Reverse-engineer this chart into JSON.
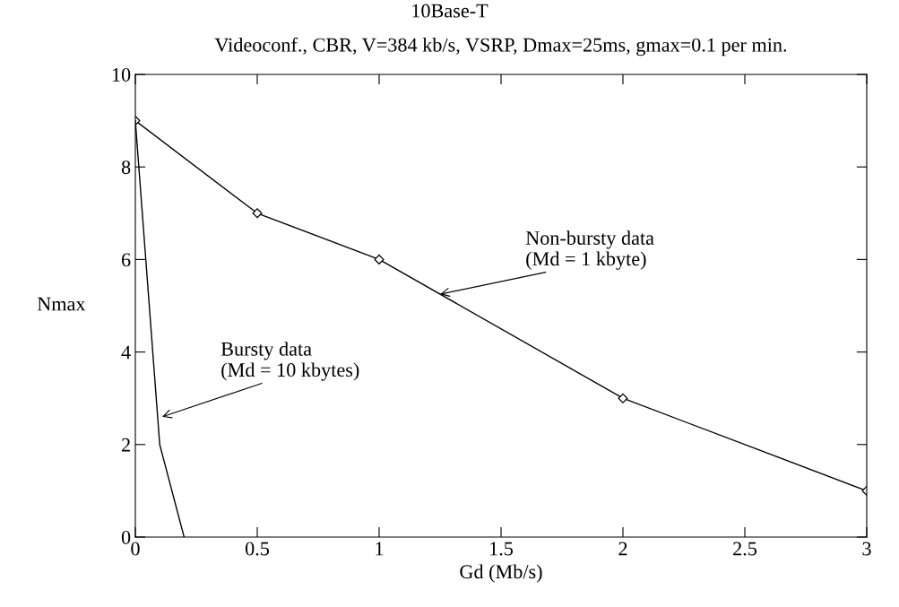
{
  "chart_data": {
    "type": "line",
    "title": "10Base-T",
    "subtitle": "Videoconf., CBR, V=384 kb/s, VSRP, Dmax=25ms, gmax=0.1 per min.",
    "xlabel": "Gd (Mb/s)",
    "ylabel": "Nmax",
    "series": [
      {
        "x": [
          0,
          0.5,
          1,
          2,
          3
        ],
        "values": [
          9,
          7,
          6,
          3,
          1
        ],
        "color": "#000000",
        "marker": "diamond"
      },
      {
        "x": [
          0,
          0.1,
          0.2
        ],
        "values": [
          9,
          2,
          0
        ],
        "color": "#000000",
        "marker": "none"
      }
    ],
    "annotations": [
      {
        "text": "Non-bursty data\n(Md = 1 kbyte)",
        "x": 1.25,
        "y": 5.25
      },
      {
        "text": "Bursty data\n(Md = 10 kbytes)",
        "x": 0.11,
        "y": 2.6
      }
    ],
    "xlim": [
      0,
      3
    ],
    "ylim": [
      0,
      10
    ],
    "xticks": [
      0,
      0.5,
      1,
      1.5,
      2,
      2.5,
      3
    ],
    "yticks": [
      0,
      2,
      4,
      6,
      8,
      10
    ],
    "grid": false,
    "legend": false,
    "line_style": "solid"
  }
}
